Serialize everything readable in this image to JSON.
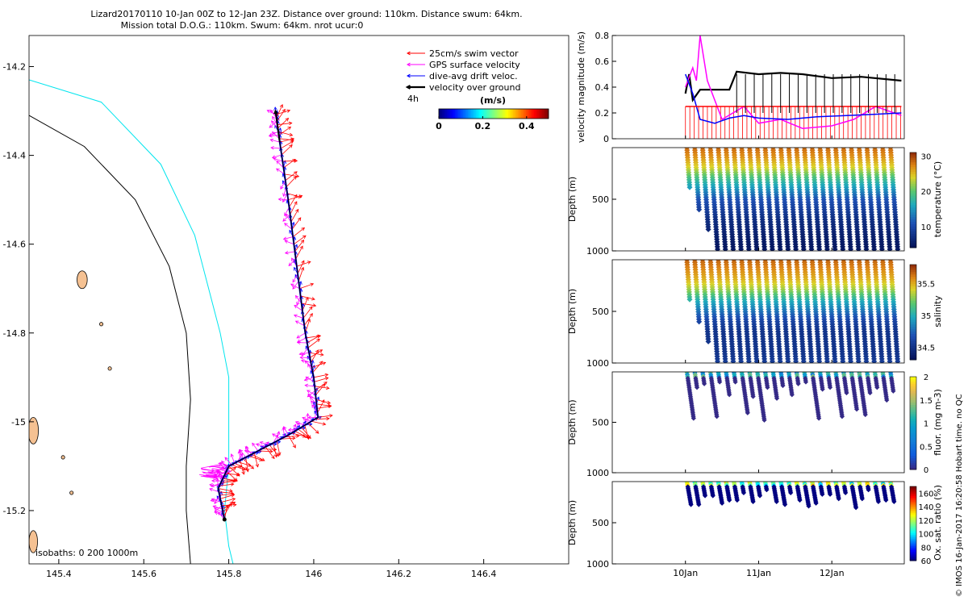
{
  "title_line1": "Lizard20170110 10-Jan 00Z to 12-Jan 23Z. Distance over ground: 110km. Distance swum: 64km.",
  "title_line2": "Mission total D.O.G.: 110km. Swum: 64km. nrot ucur:0",
  "watermark": "© IMOS 16-Jan-2017 16:20:58 Hobart time. no QC",
  "chart_data": [
    {
      "id": "map",
      "type": "vector-map",
      "xlim": [
        145.33,
        146.6
      ],
      "ylim": [
        -15.32,
        -14.13
      ],
      "xticks": [
        145.4,
        145.6,
        145.8,
        146,
        146.2,
        146.4
      ],
      "xtick_labels": [
        "145.4",
        "145.6",
        "145.8",
        "146",
        "146.2",
        "146.4"
      ],
      "yticks": [
        -14.2,
        -14.4,
        -14.6,
        -14.8,
        -15,
        -15.2
      ],
      "ytick_labels": [
        "-14.2",
        "-14.4",
        "-14.6",
        "-14.8",
        "-15",
        "-15.2"
      ],
      "legend": [
        {
          "label": "25cm/s swim vector",
          "color": "#ff0000"
        },
        {
          "label": "GPS surface velocity",
          "color": "#ff00ff"
        },
        {
          "label": "dive-avg drift veloc.",
          "color": "#0000ff"
        },
        {
          "label": "velocity over ground",
          "color": "#000000"
        }
      ],
      "time_label": "4h",
      "colorbar": {
        "label": "(m/s)",
        "ticks": [
          "0",
          "0.2",
          "0.4"
        ],
        "range": [
          0,
          0.5
        ]
      },
      "isobaths_label": "isobaths: 0   200  1000m",
      "isobath_200": [
        [
          145.33,
          -14.23
        ],
        [
          145.5,
          -14.28
        ],
        [
          145.64,
          -14.42
        ],
        [
          145.72,
          -14.58
        ],
        [
          145.78,
          -14.8
        ],
        [
          145.8,
          -14.9
        ],
        [
          145.8,
          -15.1
        ],
        [
          145.79,
          -15.2
        ],
        [
          145.8,
          -15.28
        ],
        [
          145.81,
          -15.32
        ]
      ],
      "isobath_1000": [
        [
          145.33,
          -14.31
        ],
        [
          145.46,
          -14.38
        ],
        [
          145.58,
          -14.5
        ],
        [
          145.66,
          -14.65
        ],
        [
          145.7,
          -14.8
        ],
        [
          145.71,
          -14.95
        ],
        [
          145.7,
          -15.1
        ],
        [
          145.7,
          -15.2
        ],
        [
          145.71,
          -15.32
        ]
      ],
      "track": [
        [
          145.79,
          -15.22
        ],
        [
          145.775,
          -15.15
        ],
        [
          145.8,
          -15.1
        ],
        [
          145.86,
          -15.07
        ],
        [
          145.94,
          -15.03
        ],
        [
          146.01,
          -14.99
        ],
        [
          146.0,
          -14.9
        ],
        [
          145.98,
          -14.8
        ],
        [
          145.96,
          -14.65
        ],
        [
          145.94,
          -14.5
        ],
        [
          145.92,
          -14.37
        ],
        [
          145.91,
          -14.3
        ]
      ],
      "islands": [
        {
          "name": "island-a",
          "lon": 145.34,
          "lat": -15.02,
          "rx": 0.012,
          "ry": 0.03
        },
        {
          "name": "island-b",
          "lon": 145.455,
          "lat": -14.68,
          "rx": 0.012,
          "ry": 0.02
        },
        {
          "name": "island-c",
          "lon": 145.34,
          "lat": -15.27,
          "rx": 0.01,
          "ry": 0.025
        },
        {
          "name": "island-d",
          "lon": 145.5,
          "lat": -14.78,
          "rx": 0.004,
          "ry": 0.004
        },
        {
          "name": "island-e",
          "lon": 145.52,
          "lat": -14.88,
          "rx": 0.004,
          "ry": 0.004
        },
        {
          "name": "island-f",
          "lon": 145.41,
          "lat": -15.08,
          "rx": 0.004,
          "ry": 0.004
        },
        {
          "name": "island-g",
          "lon": 145.43,
          "lat": -15.16,
          "rx": 0.004,
          "ry": 0.004
        }
      ]
    },
    {
      "id": "velocity",
      "type": "line",
      "ylabel": "velocity magnitude (m/s)",
      "ylim": [
        0,
        0.8
      ],
      "yticks": [
        0,
        0.2,
        0.4,
        0.6,
        0.8
      ],
      "ytick_labels": [
        "0",
        "0.2",
        "0.4",
        "0.6",
        "0.8"
      ],
      "xlim_days": [
        9.0,
        12.99
      ],
      "series": [
        {
          "name": "velocity over ground",
          "color": "#000000",
          "values": [
            [
              10.0,
              0.35
            ],
            [
              10.05,
              0.5
            ],
            [
              10.1,
              0.3
            ],
            [
              10.2,
              0.38
            ],
            [
              10.4,
              0.38
            ],
            [
              10.6,
              0.38
            ],
            [
              10.7,
              0.52
            ],
            [
              11.0,
              0.5
            ],
            [
              11.3,
              0.51
            ],
            [
              11.6,
              0.5
            ],
            [
              12.0,
              0.47
            ],
            [
              12.4,
              0.48
            ],
            [
              12.95,
              0.45
            ]
          ]
        },
        {
          "name": "GPS surface velocity",
          "color": "#ff00ff",
          "values": [
            [
              10.0,
              0.4
            ],
            [
              10.1,
              0.55
            ],
            [
              10.15,
              0.45
            ],
            [
              10.2,
              0.8
            ],
            [
              10.3,
              0.45
            ],
            [
              10.5,
              0.15
            ],
            [
              10.8,
              0.25
            ],
            [
              11.0,
              0.12
            ],
            [
              11.3,
              0.15
            ],
            [
              11.6,
              0.08
            ],
            [
              12.0,
              0.1
            ],
            [
              12.3,
              0.15
            ],
            [
              12.6,
              0.25
            ],
            [
              12.95,
              0.18
            ]
          ]
        },
        {
          "name": "dive-avg drift veloc.",
          "color": "#0000ff",
          "values": [
            [
              10.0,
              0.5
            ],
            [
              10.1,
              0.35
            ],
            [
              10.2,
              0.15
            ],
            [
              10.4,
              0.12
            ],
            [
              10.6,
              0.16
            ],
            [
              10.8,
              0.18
            ],
            [
              11.0,
              0.16
            ],
            [
              11.4,
              0.15
            ],
            [
              11.8,
              0.17
            ],
            [
              12.2,
              0.18
            ],
            [
              12.6,
              0.19
            ],
            [
              12.95,
              0.2
            ]
          ]
        },
        {
          "name": "25cm/s swim vector",
          "color": "#ff0000",
          "values": [
            [
              10.0,
              0.25
            ],
            [
              12.95,
              0.25
            ]
          ]
        }
      ]
    },
    {
      "id": "temperature",
      "type": "scatter",
      "ylabel": "Depth (m)",
      "cblabel": "temperature (°C)",
      "ylim": [
        1000,
        0
      ],
      "yticks": [
        500,
        1000
      ],
      "ytick_labels": [
        "500",
        "1000"
      ],
      "cbrange": [
        4,
        31
      ],
      "cbticks": [
        10,
        20,
        30
      ],
      "cbtick_labels": [
        "10",
        "20",
        "30"
      ],
      "profile": [
        [
          0,
          29
        ],
        [
          100,
          27
        ],
        [
          200,
          24
        ],
        [
          300,
          19
        ],
        [
          400,
          15
        ],
        [
          500,
          11
        ],
        [
          600,
          9
        ],
        [
          700,
          7
        ],
        [
          800,
          6
        ],
        [
          900,
          5
        ],
        [
          1000,
          4.5
        ]
      ]
    },
    {
      "id": "salinity",
      "type": "scatter",
      "ylabel": "Depth (m)",
      "cblabel": "salinity",
      "ylim": [
        1000,
        0
      ],
      "yticks": [
        500,
        1000
      ],
      "ytick_labels": [
        "500",
        "1000"
      ],
      "cbrange": [
        34.3,
        35.8
      ],
      "cbticks": [
        34.5,
        35,
        35.5
      ],
      "cbtick_labels": [
        "34.5",
        "35",
        "35.5"
      ],
      "profile": [
        [
          0,
          35.7
        ],
        [
          100,
          35.6
        ],
        [
          200,
          35.5
        ],
        [
          300,
          35.3
        ],
        [
          400,
          35.0
        ],
        [
          500,
          34.8
        ],
        [
          600,
          34.6
        ],
        [
          700,
          34.5
        ],
        [
          800,
          34.5
        ],
        [
          900,
          34.5
        ],
        [
          1000,
          34.55
        ]
      ]
    },
    {
      "id": "fluorescence",
      "type": "scatter",
      "ylabel": "Depth (m)",
      "cblabel": "fluor. (mg m-3)",
      "ylim": [
        1000,
        0
      ],
      "yticks": [
        500,
        1000
      ],
      "ytick_labels": [
        "500",
        "1000"
      ],
      "cbrange": [
        0,
        2
      ],
      "cbticks": [
        0,
        0.5,
        1,
        1.5,
        2
      ],
      "cbtick_labels": [
        "0",
        "0.5",
        "1",
        "1.5",
        "2"
      ],
      "sparse": true
    },
    {
      "id": "oxygen",
      "type": "scatter",
      "ylabel": "Depth (m)",
      "cblabel": "Ox. sat. ratio (%)",
      "ylim": [
        1000,
        0
      ],
      "yticks": [
        500,
        1000
      ],
      "ytick_labels": [
        "500",
        "1000"
      ],
      "cbrange": [
        60,
        170
      ],
      "cbticks": [
        60,
        80,
        100,
        120,
        140,
        160
      ],
      "cbtick_labels": [
        "60",
        "80",
        "100",
        "120",
        "140",
        "160"
      ],
      "sparse": true
    }
  ],
  "time_axis": {
    "ticks": [
      10,
      11,
      12
    ],
    "labels": [
      "10Jan",
      "11Jan",
      "12Jan"
    ]
  }
}
